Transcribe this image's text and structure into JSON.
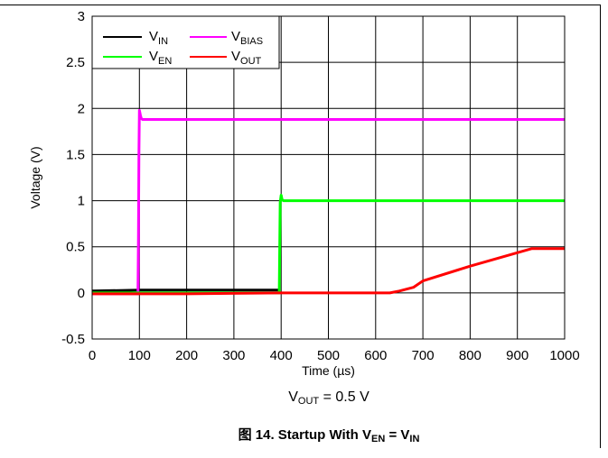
{
  "chart_data": {
    "type": "line",
    "xlabel": "Time (µs)",
    "ylabel": "Voltage (V)",
    "xlim": [
      0,
      1000
    ],
    "ylim": [
      -0.5,
      3
    ],
    "x_ticks": [
      0,
      100,
      200,
      300,
      400,
      500,
      600,
      700,
      800,
      900,
      1000
    ],
    "y_ticks": [
      3,
      2.5,
      2,
      1.5,
      1,
      0.5,
      0,
      -0.5
    ],
    "y_tick_labels": [
      "3",
      "2.5",
      "2",
      "1.5",
      "1",
      "0.5",
      "0",
      "-0.5"
    ],
    "grid": true,
    "legend_position": "top-left",
    "series": [
      {
        "name": "VIN",
        "label_main": "V",
        "label_sub": "IN",
        "color": "#000000",
        "x": [
          0,
          100,
          200,
          300,
          398
        ],
        "y": [
          0.02,
          0.03,
          0.03,
          0.03,
          0.03
        ]
      },
      {
        "name": "VBIAS",
        "label_main": "V",
        "label_sub": "BIAS",
        "color": "#ff00ff",
        "x": [
          0,
          97,
          98,
          99,
          100,
          102,
          104,
          107,
          200,
          400,
          600,
          800,
          1000
        ],
        "y": [
          -0.01,
          -0.01,
          0.6,
          1.5,
          1.98,
          1.93,
          1.89,
          1.88,
          1.88,
          1.88,
          1.88,
          1.88,
          1.88
        ]
      },
      {
        "name": "VEN",
        "label_main": "V",
        "label_sub": "EN",
        "color": "#00ff00",
        "x": [
          0,
          200,
          396,
          397,
          398,
          400,
          402,
          405,
          500,
          700,
          1000
        ],
        "y": [
          0.0,
          0.0,
          0.0,
          0.5,
          0.98,
          1.06,
          1.01,
          1.0,
          1.0,
          1.0,
          1.0
        ],
        "subscript": "EN"
      },
      {
        "name": "VOUT",
        "label_main": "V",
        "label_sub": "OUT",
        "color": "#ff0000",
        "x": [
          0,
          200,
          400,
          630,
          650,
          680,
          700,
          800,
          930,
          1000
        ],
        "y": [
          -0.01,
          -0.01,
          0.0,
          0.0,
          0.02,
          0.06,
          0.13,
          0.29,
          0.48,
          0.48
        ]
      }
    ]
  },
  "annotation": {
    "prefix": "V",
    "sub": "OUT",
    "suffix": " = 0.5 V"
  },
  "caption": {
    "prefix": "图 14. Startup With V",
    "sub1": "EN",
    "middle": " = V",
    "sub2": "IN"
  }
}
